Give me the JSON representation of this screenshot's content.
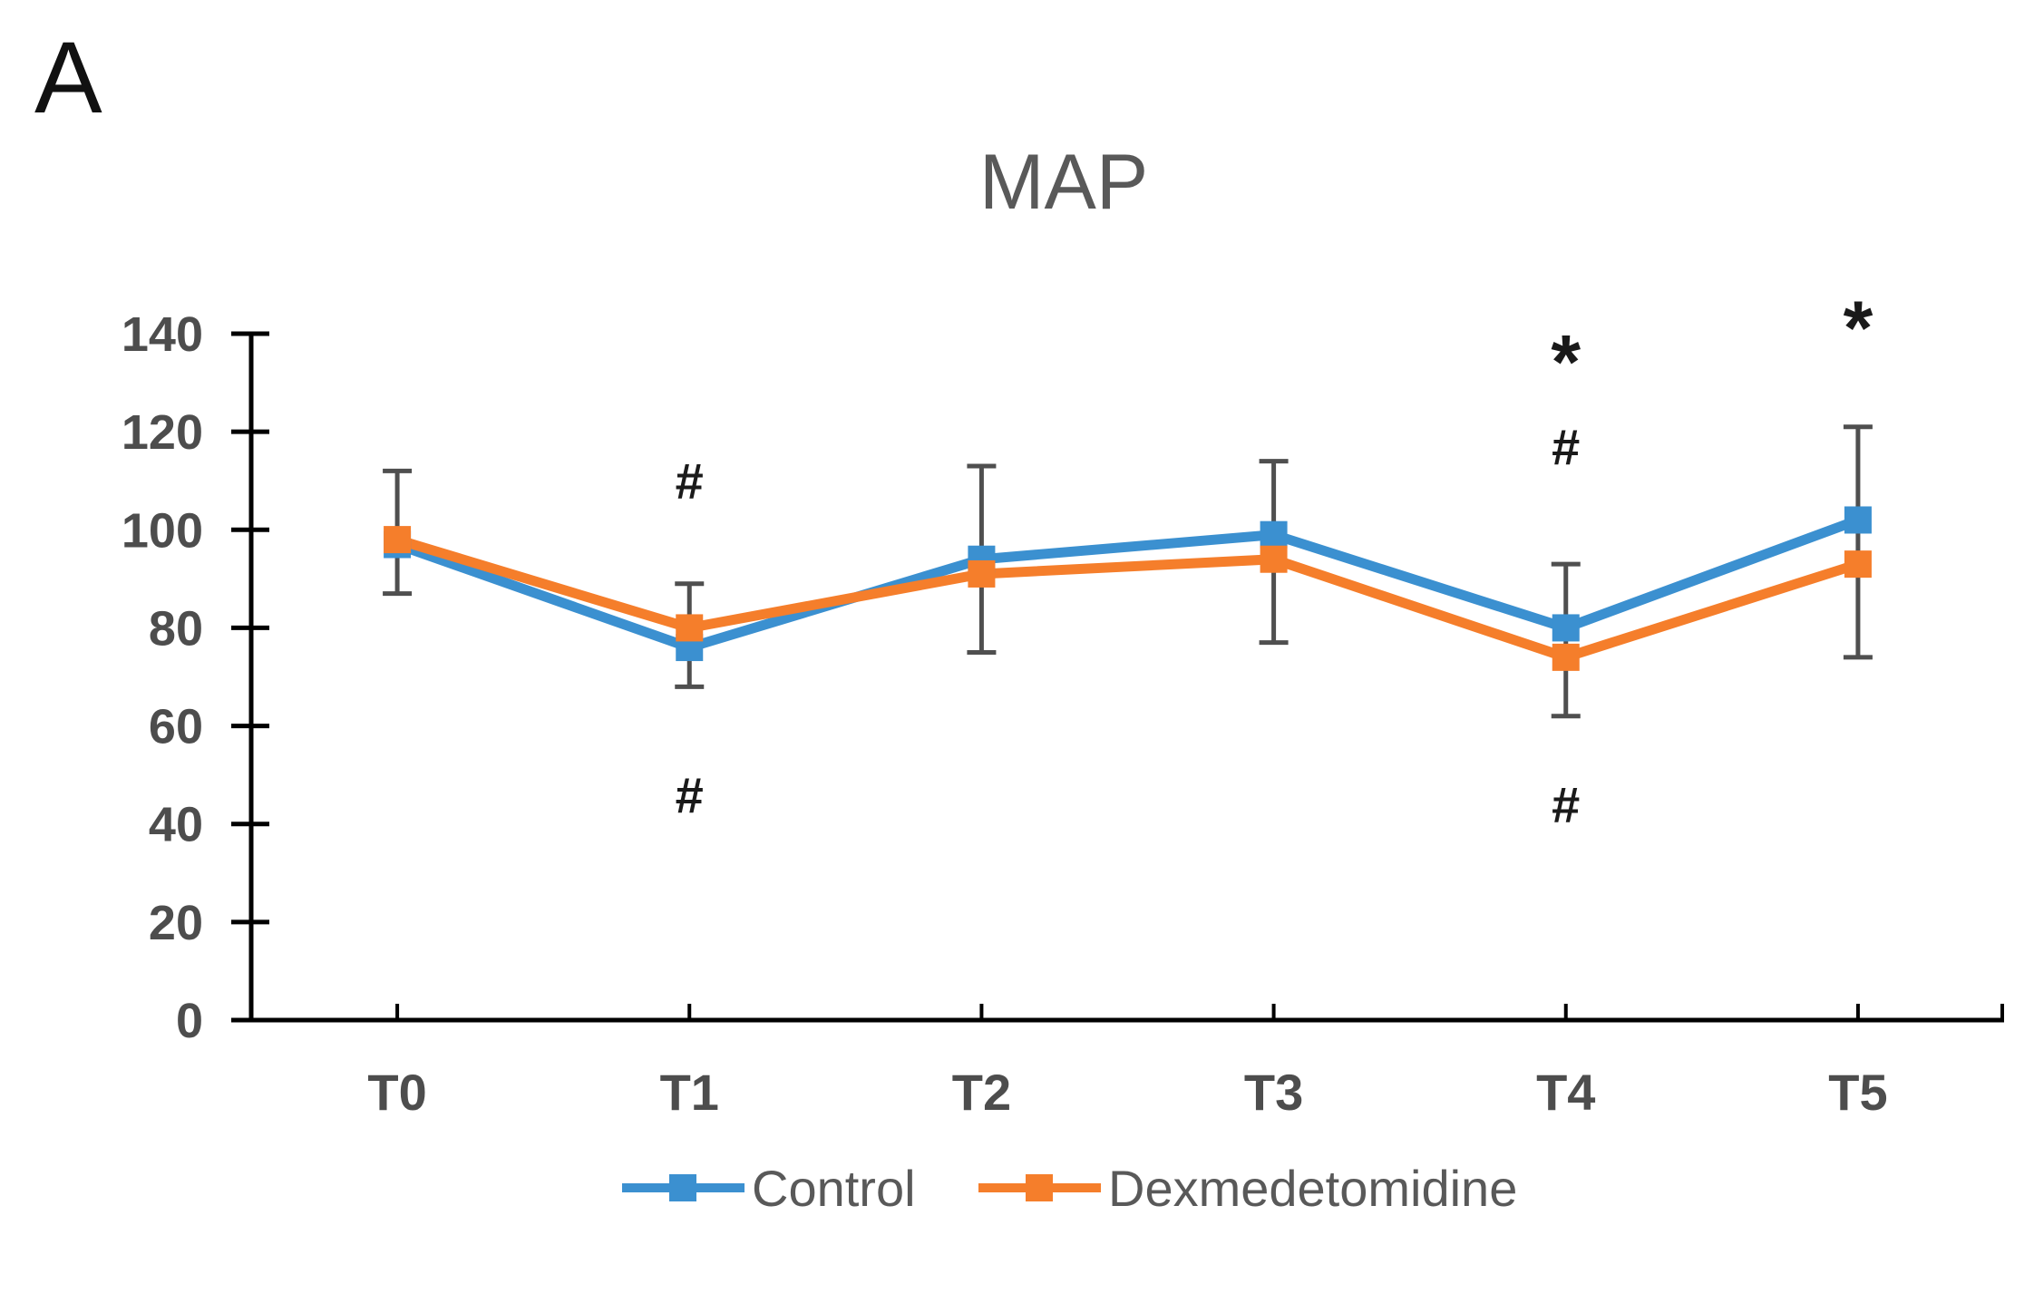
{
  "panel_label": "A",
  "chart_data": {
    "type": "line",
    "title": "MAP",
    "categories": [
      "T0",
      "T1",
      "T2",
      "T3",
      "T4",
      "T5"
    ],
    "series": [
      {
        "name": "Control",
        "color": "#3B90D0",
        "marker": "square",
        "values": [
          97,
          76,
          94,
          99,
          80,
          102
        ]
      },
      {
        "name": "Dexmedetomidine",
        "color": "#F57E2B",
        "marker": "square",
        "values": [
          98,
          80,
          91,
          94,
          74,
          93
        ]
      }
    ],
    "error_bars": {
      "color": "#4F4F4F",
      "ranges": [
        {
          "category": "T0",
          "low": 87,
          "high": 112
        },
        {
          "category": "T1",
          "low": 68,
          "high": 89
        },
        {
          "category": "T2",
          "low": 75,
          "high": 113
        },
        {
          "category": "T3",
          "low": 77,
          "high": 114
        },
        {
          "category": "T4",
          "low": 62,
          "high": 93
        },
        {
          "category": "T5",
          "low": 74,
          "high": 121
        }
      ]
    },
    "annotations": [
      {
        "category": "T1",
        "value": 110,
        "symbol": "#"
      },
      {
        "category": "T1",
        "value": 46,
        "symbol": "#"
      },
      {
        "category": "T4",
        "value": 137,
        "symbol": "*"
      },
      {
        "category": "T4",
        "value": 117,
        "symbol": "#"
      },
      {
        "category": "T4",
        "value": 44,
        "symbol": "#"
      },
      {
        "category": "T5",
        "value": 144,
        "symbol": "*"
      }
    ],
    "y_axis": {
      "min": 0,
      "max": 140,
      "step": 20,
      "tick_labels": [
        "0",
        "20",
        "40",
        "60",
        "80",
        "100",
        "120",
        "140"
      ]
    },
    "x_axis": {
      "tick_labels": [
        "T0",
        "T1",
        "T2",
        "T3",
        "T4",
        "T5"
      ]
    },
    "legend": {
      "position": "bottom",
      "entries": [
        "Control",
        "Dexmedetomidine"
      ]
    },
    "grid": false,
    "styles": {
      "axis_color": "#000000",
      "tick_label_color": "#4D4D4D",
      "title_color": "#595959",
      "legend_text_color": "#595959",
      "annotation_color": "#1A1A1A"
    }
  }
}
